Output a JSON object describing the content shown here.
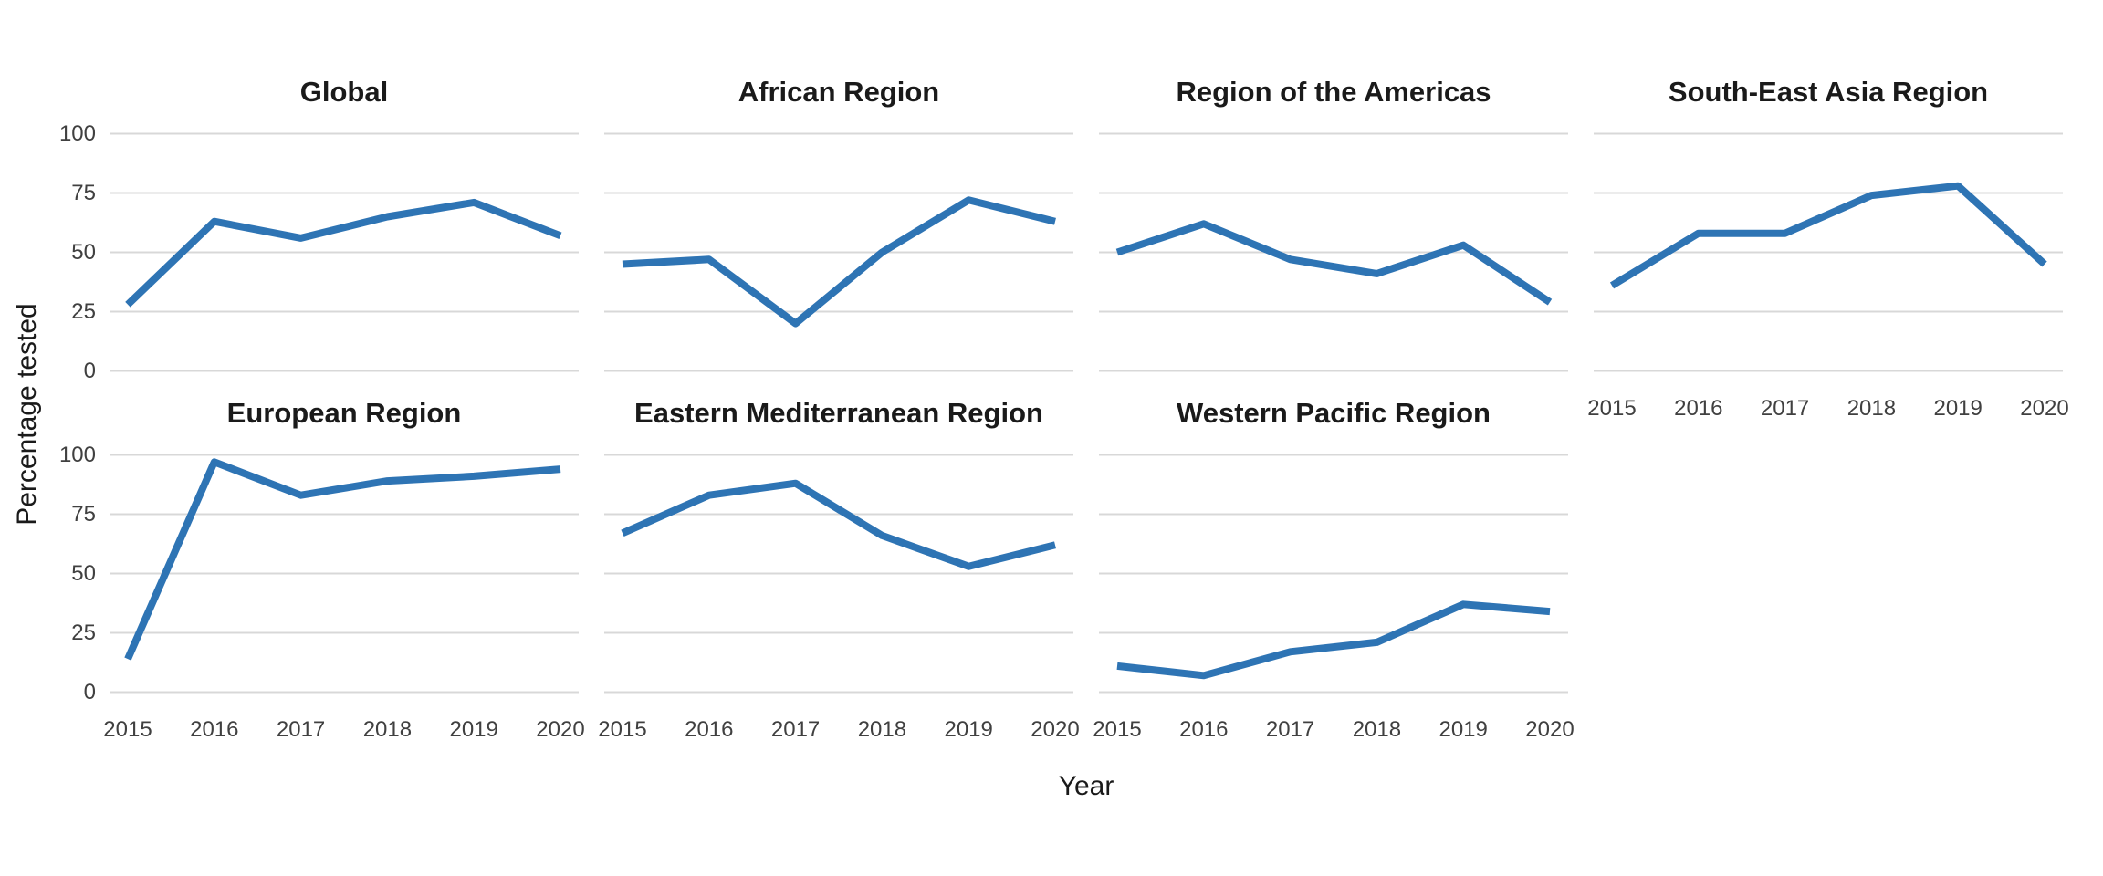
{
  "figure": {
    "y_axis_title": "Percentage tested",
    "x_axis_title": "Year",
    "y_tick_labels": [
      "100",
      "75",
      "50",
      "25",
      "0"
    ],
    "x_tick_labels": [
      "2015",
      "2016",
      "2017",
      "2018",
      "2019",
      "2020"
    ]
  },
  "chart_data": {
    "type": "line",
    "x": [
      2015,
      2016,
      2017,
      2018,
      2019,
      2020
    ],
    "xlabel": "Year",
    "ylabel": "Percentage tested",
    "ylim": [
      0,
      100
    ],
    "y_breaks": [
      0,
      25,
      50,
      75,
      100
    ],
    "layout": "small-multiples facet grid, 2 rows x 4 columns, panel titles on top, shared axes, horizontal gridlines only",
    "legend": "none",
    "line_color": "#2e74b4",
    "grid_color": "#d8d8d8",
    "series": [
      {
        "name": "Global",
        "values": [
          28,
          63,
          56,
          65,
          71,
          57
        ]
      },
      {
        "name": "African Region",
        "values": [
          45,
          47,
          20,
          50,
          72,
          63
        ]
      },
      {
        "name": "Region of the Americas",
        "values": [
          50,
          62,
          47,
          41,
          53,
          29
        ]
      },
      {
        "name": "South-East Asia Region",
        "values": [
          36,
          58,
          58,
          74,
          78,
          45
        ]
      },
      {
        "name": "European Region",
        "values": [
          14,
          97,
          83,
          89,
          91,
          94
        ]
      },
      {
        "name": "Eastern Mediterranean Region",
        "values": [
          67,
          83,
          88,
          66,
          53,
          62
        ]
      },
      {
        "name": "Western Pacific Region",
        "values": [
          11,
          7,
          17,
          21,
          37,
          34
        ]
      }
    ]
  }
}
